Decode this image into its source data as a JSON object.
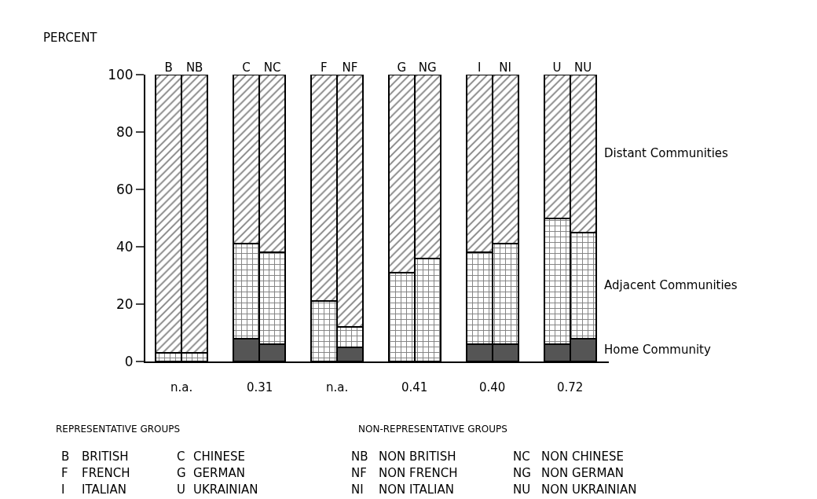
{
  "chart_data": {
    "type": "bar",
    "stacked": true,
    "ylabel": "PERCENT",
    "categories": [
      "B",
      "NB",
      "C",
      "NC",
      "F",
      "NF",
      "G",
      "NG",
      "I",
      "NI",
      "U",
      "NU"
    ],
    "series": [
      {
        "name": "Home Community",
        "color": "#555555",
        "values": [
          0,
          0,
          8,
          6,
          0,
          5,
          0,
          0,
          6,
          6,
          6,
          8
        ]
      },
      {
        "name": "Adjacent Communities",
        "color": "#000000",
        "values": [
          3,
          3,
          33,
          32,
          21,
          7,
          31,
          36,
          32,
          35,
          44,
          37
        ]
      },
      {
        "name": "Distant Communities",
        "color": "#000000",
        "values": [
          97,
          97,
          59,
          62,
          79,
          88,
          69,
          64,
          62,
          59,
          50,
          55
        ]
      }
    ],
    "ylim": [
      0,
      100
    ],
    "yticks": [
      0,
      20,
      40,
      60,
      80,
      100
    ],
    "legend": false,
    "annotations": [
      "n.a.",
      "0.31",
      "n.a.",
      "0.41",
      "0.40",
      "0.72",
      "REPRESENTATIVE GROUPS",
      "NON-REPRESENTATIVE GROUPS",
      "B",
      "BRITISH",
      "C",
      "CHINESE",
      "F",
      "FRENCH",
      "G",
      "GERMAN",
      "I",
      "ITALIAN",
      "U",
      "UKRAINIAN",
      "NB",
      "NON BRITISH",
      "NC",
      "NON CHINESE",
      "NF",
      "NON FRENCH",
      "NG",
      "NON GERMAN",
      "NI",
      "NON ITALIAN",
      "NU",
      "NON UKRAINIAN"
    ]
  }
}
